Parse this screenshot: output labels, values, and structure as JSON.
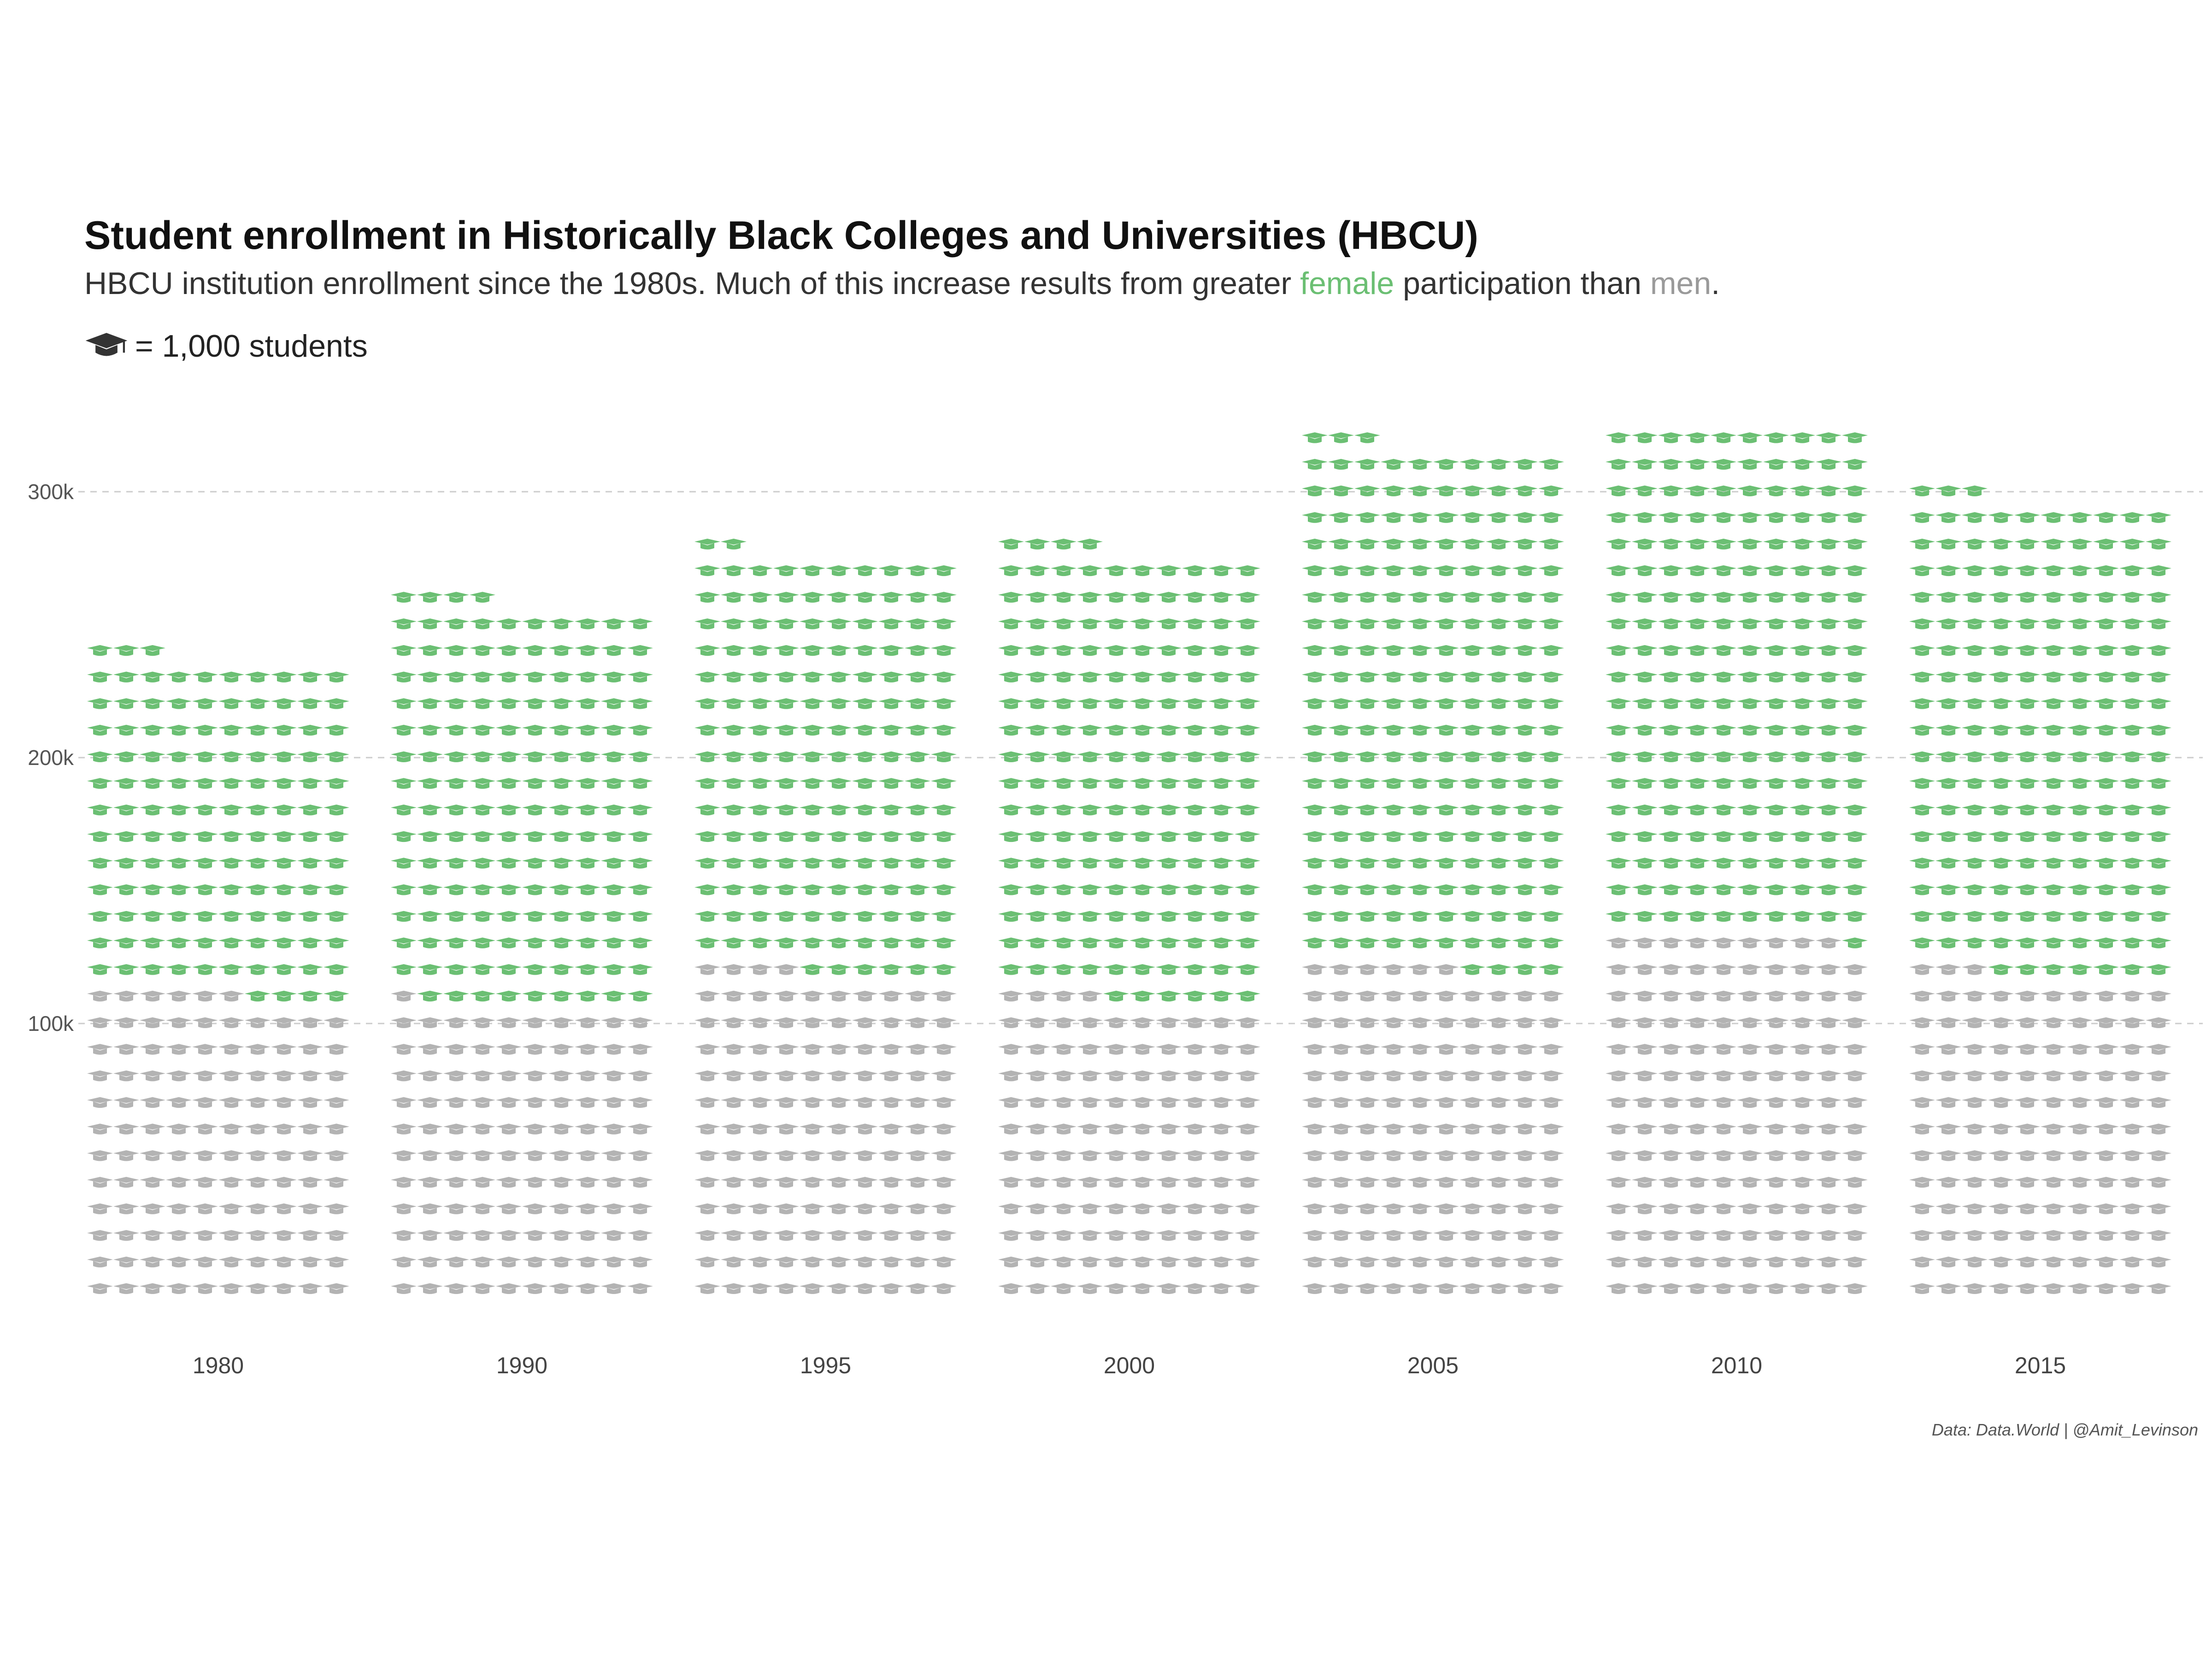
{
  "title": "Student enrollment in Historically Black Colleges and Universities (HBCU)",
  "subtitle": {
    "before": "HBCU institution enrollment since the 1980s. Much of this increase results from greater ",
    "female_word": "female",
    "middle": " participation than ",
    "men_word": "men",
    "after": "."
  },
  "legend": {
    "icon": "graduation-cap-icon",
    "text": "= 1,000 students"
  },
  "caption": "Data: Data.World | @Amit_Levinson",
  "colors": {
    "female": "#6bbf73",
    "male": "#b3b3b3",
    "gridline": "#cccccc"
  },
  "chart_data": {
    "type": "waffle",
    "unit": 1000,
    "categories": [
      "1980",
      "1990",
      "1995",
      "2000",
      "2005",
      "2010",
      "2015"
    ],
    "series": [
      {
        "name": "men",
        "values": [
          116000,
          111000,
          124000,
          114000,
          126000,
          139000,
          123000
        ]
      },
      {
        "name": "female",
        "values": [
          127000,
          153000,
          158000,
          170000,
          197000,
          191000,
          180000
        ]
      }
    ],
    "ylim": [
      0,
      330000
    ],
    "yticks": [
      100000,
      200000,
      300000
    ],
    "ytick_labels": [
      "100k",
      "200k",
      "300k"
    ],
    "grid": true
  }
}
